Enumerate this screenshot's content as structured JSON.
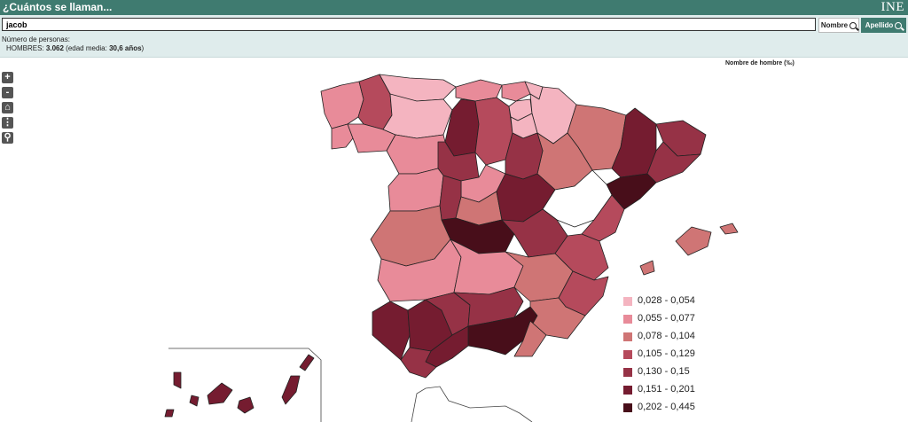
{
  "header": {
    "title": "¿Cuántos se llaman...",
    "logo": "INE"
  },
  "search": {
    "value": "jacob",
    "nombre_label": "Nombre",
    "apellido_label": "Apellido"
  },
  "info": {
    "label": "Número de personas:",
    "line_prefix": "HOMBRES: ",
    "count": "3.062",
    "age_prefix": " (edad media: ",
    "age": "30,6 años",
    "age_suffix": ")"
  },
  "map": {
    "title": "Nombre de hombre (‰)",
    "legend": [
      {
        "label": "0,028 - 0,054",
        "color": "#f4b4c0"
      },
      {
        "label": "0,055 - 0,077",
        "color": "#e88b99"
      },
      {
        "label": "0,078 - 0,104",
        "color": "#cf7575"
      },
      {
        "label": "0,105 - 0,129",
        "color": "#b54a5c"
      },
      {
        "label": "0,130 - 0,15",
        "color": "#963246"
      },
      {
        "label": "0,151 - 0,201",
        "color": "#751c30"
      },
      {
        "label": "0,202 - 0,445",
        "color": "#480e1a"
      }
    ]
  },
  "tools": {
    "zoom_in": "+",
    "zoom_out": "-",
    "home": "⌂",
    "more": "⋮",
    "search": "⚲"
  }
}
